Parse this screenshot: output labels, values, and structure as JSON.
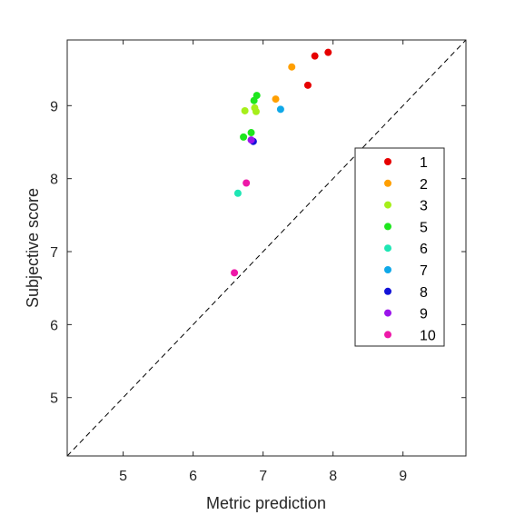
{
  "chart_data": {
    "type": "scatter",
    "title": "",
    "xlabel": "Metric prediction",
    "ylabel": "Subjective score",
    "xlim": [
      4.2,
      9.9
    ],
    "ylim": [
      4.2,
      9.9
    ],
    "xticks": [
      5,
      6,
      7,
      8,
      9
    ],
    "yticks": [
      5,
      6,
      7,
      8,
      9
    ],
    "grid": false,
    "reference_line": {
      "style": "dashed",
      "color": "#000000",
      "x": [
        4.2,
        9.9
      ],
      "y": [
        4.2,
        9.9
      ]
    },
    "legend_position": "right",
    "series": [
      {
        "name": "1",
        "color": "#e60000",
        "x": [
          7.93,
          7.74,
          7.64
        ],
        "y": [
          9.73,
          9.68,
          9.28
        ]
      },
      {
        "name": "2",
        "color": "#ff9f00",
        "x": [
          7.41,
          7.18
        ],
        "y": [
          9.53,
          9.09
        ]
      },
      {
        "name": "3",
        "color": "#a6ef1a",
        "x": [
          6.74,
          6.88,
          6.9
        ],
        "y": [
          8.93,
          8.97,
          8.92
        ]
      },
      {
        "name": "5",
        "color": "#1ee61e",
        "x": [
          6.91,
          6.87,
          6.83,
          6.72
        ],
        "y": [
          9.14,
          9.07,
          8.63,
          8.57
        ]
      },
      {
        "name": "6",
        "color": "#1ee6b4",
        "x": [
          6.64
        ],
        "y": [
          7.8
        ]
      },
      {
        "name": "7",
        "color": "#0fa8e8",
        "x": [
          7.25
        ],
        "y": [
          8.95
        ]
      },
      {
        "name": "8",
        "color": "#1212d8",
        "x": [
          6.86
        ],
        "y": [
          8.51
        ]
      },
      {
        "name": "9",
        "color": "#9b14eb",
        "x": [
          6.83
        ],
        "y": [
          8.53
        ]
      },
      {
        "name": "10",
        "color": "#ee18a8",
        "x": [
          6.76,
          6.59
        ],
        "y": [
          7.94,
          6.71
        ]
      }
    ]
  }
}
